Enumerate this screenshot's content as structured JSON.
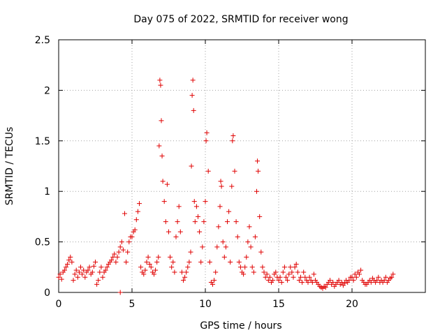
{
  "chart_data": {
    "type": "scatter",
    "title": "Day 075 of 2022, SRMTID for receiver wong",
    "xlabel": "GPS time / hours",
    "ylabel": "SRMTID / TECUs",
    "xlim": [
      0,
      25
    ],
    "ylim": [
      0,
      2.5
    ],
    "xticks": [
      0,
      5,
      10,
      15,
      20
    ],
    "xtick_labels": [
      "0",
      "5",
      "10",
      "15",
      "20"
    ],
    "yticks": [
      0,
      0.5,
      1,
      1.5,
      2,
      2.5
    ],
    "ytick_labels": [
      "0",
      "0.5",
      "1",
      "1.5",
      "2",
      "2.5"
    ],
    "grid": true,
    "marker": "+",
    "color": "#e00000",
    "series": [
      {
        "name": "SRMTID",
        "points": [
          [
            0.0,
            0.15
          ],
          [
            0.1,
            0.18
          ],
          [
            0.2,
            0.13
          ],
          [
            0.3,
            0.2
          ],
          [
            0.4,
            0.22
          ],
          [
            0.5,
            0.25
          ],
          [
            0.6,
            0.28
          ],
          [
            0.7,
            0.32
          ],
          [
            0.8,
            0.35
          ],
          [
            0.9,
            0.3
          ],
          [
            1.0,
            0.12
          ],
          [
            1.1,
            0.18
          ],
          [
            1.2,
            0.22
          ],
          [
            1.3,
            0.15
          ],
          [
            1.4,
            0.2
          ],
          [
            1.5,
            0.25
          ],
          [
            1.6,
            0.18
          ],
          [
            1.7,
            0.22
          ],
          [
            1.8,
            0.15
          ],
          [
            1.9,
            0.2
          ],
          [
            2.0,
            0.22
          ],
          [
            2.1,
            0.25
          ],
          [
            2.2,
            0.18
          ],
          [
            2.3,
            0.2
          ],
          [
            2.4,
            0.26
          ],
          [
            2.5,
            0.3
          ],
          [
            2.6,
            0.08
          ],
          [
            2.7,
            0.12
          ],
          [
            2.8,
            0.2
          ],
          [
            2.9,
            0.25
          ],
          [
            3.0,
            0.15
          ],
          [
            3.1,
            0.2
          ],
          [
            3.2,
            0.22
          ],
          [
            3.3,
            0.25
          ],
          [
            3.4,
            0.28
          ],
          [
            3.5,
            0.3
          ],
          [
            3.6,
            0.32
          ],
          [
            3.7,
            0.35
          ],
          [
            3.8,
            0.38
          ],
          [
            3.9,
            0.3
          ],
          [
            4.0,
            0.35
          ],
          [
            4.1,
            0.4
          ],
          [
            4.2,
            0.45
          ],
          [
            4.3,
            0.5
          ],
          [
            4.4,
            0.42
          ],
          [
            4.5,
            0.78
          ],
          [
            4.6,
            0.3
          ],
          [
            4.7,
            0.4
          ],
          [
            4.8,
            0.5
          ],
          [
            4.9,
            0.55
          ],
          [
            5.0,
            0.55
          ],
          [
            5.1,
            0.6
          ],
          [
            5.2,
            0.62
          ],
          [
            5.3,
            0.72
          ],
          [
            5.4,
            0.8
          ],
          [
            5.5,
            0.88
          ],
          [
            5.6,
            0.25
          ],
          [
            5.7,
            0.2
          ],
          [
            5.8,
            0.18
          ],
          [
            5.9,
            0.22
          ],
          [
            6.0,
            0.3
          ],
          [
            6.1,
            0.35
          ],
          [
            6.2,
            0.28
          ],
          [
            6.3,
            0.25
          ],
          [
            6.4,
            0.2
          ],
          [
            6.5,
            0.18
          ],
          [
            6.6,
            0.22
          ],
          [
            6.7,
            0.3
          ],
          [
            6.8,
            0.35
          ],
          [
            6.85,
            1.45
          ],
          [
            6.9,
            2.1
          ],
          [
            6.95,
            2.05
          ],
          [
            7.0,
            1.7
          ],
          [
            7.05,
            1.35
          ],
          [
            7.1,
            1.1
          ],
          [
            7.2,
            0.9
          ],
          [
            7.3,
            0.7
          ],
          [
            7.4,
            1.07
          ],
          [
            7.5,
            0.6
          ],
          [
            7.6,
            0.35
          ],
          [
            7.7,
            0.25
          ],
          [
            7.8,
            0.3
          ],
          [
            7.9,
            0.2
          ],
          [
            8.0,
            0.55
          ],
          [
            8.1,
            0.7
          ],
          [
            8.2,
            0.85
          ],
          [
            8.3,
            0.6
          ],
          [
            8.4,
            0.2
          ],
          [
            8.5,
            0.12
          ],
          [
            8.6,
            0.15
          ],
          [
            8.7,
            0.2
          ],
          [
            8.8,
            0.25
          ],
          [
            8.9,
            0.3
          ],
          [
            9.0,
            0.4
          ],
          [
            9.05,
            1.25
          ],
          [
            9.1,
            1.95
          ],
          [
            9.15,
            2.1
          ],
          [
            9.2,
            1.8
          ],
          [
            9.25,
            0.9
          ],
          [
            9.3,
            0.7
          ],
          [
            9.4,
            0.85
          ],
          [
            9.5,
            0.75
          ],
          [
            9.6,
            0.6
          ],
          [
            9.7,
            0.3
          ],
          [
            9.8,
            0.45
          ],
          [
            9.9,
            0.7
          ],
          [
            10.0,
            0.9
          ],
          [
            10.05,
            1.5
          ],
          [
            10.1,
            1.58
          ],
          [
            10.2,
            1.2
          ],
          [
            10.3,
            0.3
          ],
          [
            10.4,
            0.1
          ],
          [
            10.5,
            0.08
          ],
          [
            10.6,
            0.12
          ],
          [
            10.7,
            0.2
          ],
          [
            10.8,
            0.45
          ],
          [
            10.9,
            0.65
          ],
          [
            11.0,
            0.85
          ],
          [
            11.05,
            1.1
          ],
          [
            11.1,
            1.05
          ],
          [
            11.2,
            0.5
          ],
          [
            11.3,
            0.35
          ],
          [
            11.4,
            0.45
          ],
          [
            11.5,
            0.7
          ],
          [
            11.6,
            0.8
          ],
          [
            11.7,
            0.3
          ],
          [
            11.8,
            1.05
          ],
          [
            11.85,
            1.5
          ],
          [
            11.9,
            1.55
          ],
          [
            12.0,
            1.2
          ],
          [
            12.1,
            0.7
          ],
          [
            12.2,
            0.55
          ],
          [
            12.3,
            0.3
          ],
          [
            12.4,
            0.25
          ],
          [
            12.5,
            0.2
          ],
          [
            12.6,
            0.18
          ],
          [
            12.7,
            0.25
          ],
          [
            12.8,
            0.35
          ],
          [
            12.9,
            0.5
          ],
          [
            13.0,
            0.65
          ],
          [
            13.1,
            0.45
          ],
          [
            13.2,
            0.25
          ],
          [
            13.3,
            0.2
          ],
          [
            13.4,
            0.55
          ],
          [
            13.5,
            1.0
          ],
          [
            13.55,
            1.3
          ],
          [
            13.6,
            1.2
          ],
          [
            13.7,
            0.75
          ],
          [
            13.8,
            0.4
          ],
          [
            13.9,
            0.25
          ],
          [
            14.0,
            0.2
          ],
          [
            14.1,
            0.15
          ],
          [
            14.2,
            0.18
          ],
          [
            14.3,
            0.12
          ],
          [
            14.4,
            0.15
          ],
          [
            14.5,
            0.1
          ],
          [
            14.6,
            0.12
          ],
          [
            14.7,
            0.18
          ],
          [
            14.8,
            0.2
          ],
          [
            14.9,
            0.15
          ],
          [
            15.0,
            0.12
          ],
          [
            15.1,
            0.15
          ],
          [
            15.2,
            0.1
          ],
          [
            15.3,
            0.2
          ],
          [
            15.4,
            0.25
          ],
          [
            15.5,
            0.15
          ],
          [
            15.6,
            0.12
          ],
          [
            15.7,
            0.18
          ],
          [
            15.8,
            0.25
          ],
          [
            15.9,
            0.2
          ],
          [
            16.0,
            0.15
          ],
          [
            16.1,
            0.25
          ],
          [
            16.2,
            0.28
          ],
          [
            16.3,
            0.2
          ],
          [
            16.4,
            0.12
          ],
          [
            16.5,
            0.15
          ],
          [
            16.6,
            0.1
          ],
          [
            16.7,
            0.2
          ],
          [
            16.8,
            0.15
          ],
          [
            16.9,
            0.12
          ],
          [
            17.0,
            0.1
          ],
          [
            17.1,
            0.15
          ],
          [
            17.2,
            0.12
          ],
          [
            17.3,
            0.1
          ],
          [
            17.4,
            0.18
          ],
          [
            17.5,
            0.12
          ],
          [
            17.6,
            0.1
          ],
          [
            17.7,
            0.08
          ],
          [
            17.8,
            0.06
          ],
          [
            17.9,
            0.05
          ],
          [
            18.0,
            0.04
          ],
          [
            18.1,
            0.06
          ],
          [
            18.2,
            0.05
          ],
          [
            18.3,
            0.08
          ],
          [
            18.4,
            0.1
          ],
          [
            18.5,
            0.12
          ],
          [
            18.6,
            0.08
          ],
          [
            18.7,
            0.1
          ],
          [
            18.8,
            0.06
          ],
          [
            18.9,
            0.08
          ],
          [
            19.0,
            0.1
          ],
          [
            19.1,
            0.12
          ],
          [
            19.2,
            0.08
          ],
          [
            19.3,
            0.1
          ],
          [
            19.4,
            0.07
          ],
          [
            19.5,
            0.09
          ],
          [
            19.6,
            0.12
          ],
          [
            19.7,
            0.1
          ],
          [
            19.8,
            0.12
          ],
          [
            19.9,
            0.15
          ],
          [
            20.0,
            0.15
          ],
          [
            20.1,
            0.12
          ],
          [
            20.2,
            0.18
          ],
          [
            20.3,
            0.15
          ],
          [
            20.4,
            0.2
          ],
          [
            20.5,
            0.18
          ],
          [
            20.6,
            0.22
          ],
          [
            20.7,
            0.12
          ],
          [
            20.8,
            0.1
          ],
          [
            20.9,
            0.08
          ],
          [
            21.0,
            0.08
          ],
          [
            21.1,
            0.1
          ],
          [
            21.2,
            0.12
          ],
          [
            21.3,
            0.1
          ],
          [
            21.4,
            0.14
          ],
          [
            21.5,
            0.12
          ],
          [
            21.6,
            0.1
          ],
          [
            21.7,
            0.12
          ],
          [
            21.8,
            0.15
          ],
          [
            21.9,
            0.1
          ],
          [
            22.0,
            0.12
          ],
          [
            22.1,
            0.1
          ],
          [
            22.2,
            0.12
          ],
          [
            22.3,
            0.15
          ],
          [
            22.4,
            0.1
          ],
          [
            22.5,
            0.12
          ],
          [
            22.6,
            0.14
          ],
          [
            22.7,
            0.15
          ],
          [
            22.8,
            0.18
          ],
          [
            4.2,
            0.0
          ]
        ]
      }
    ]
  }
}
